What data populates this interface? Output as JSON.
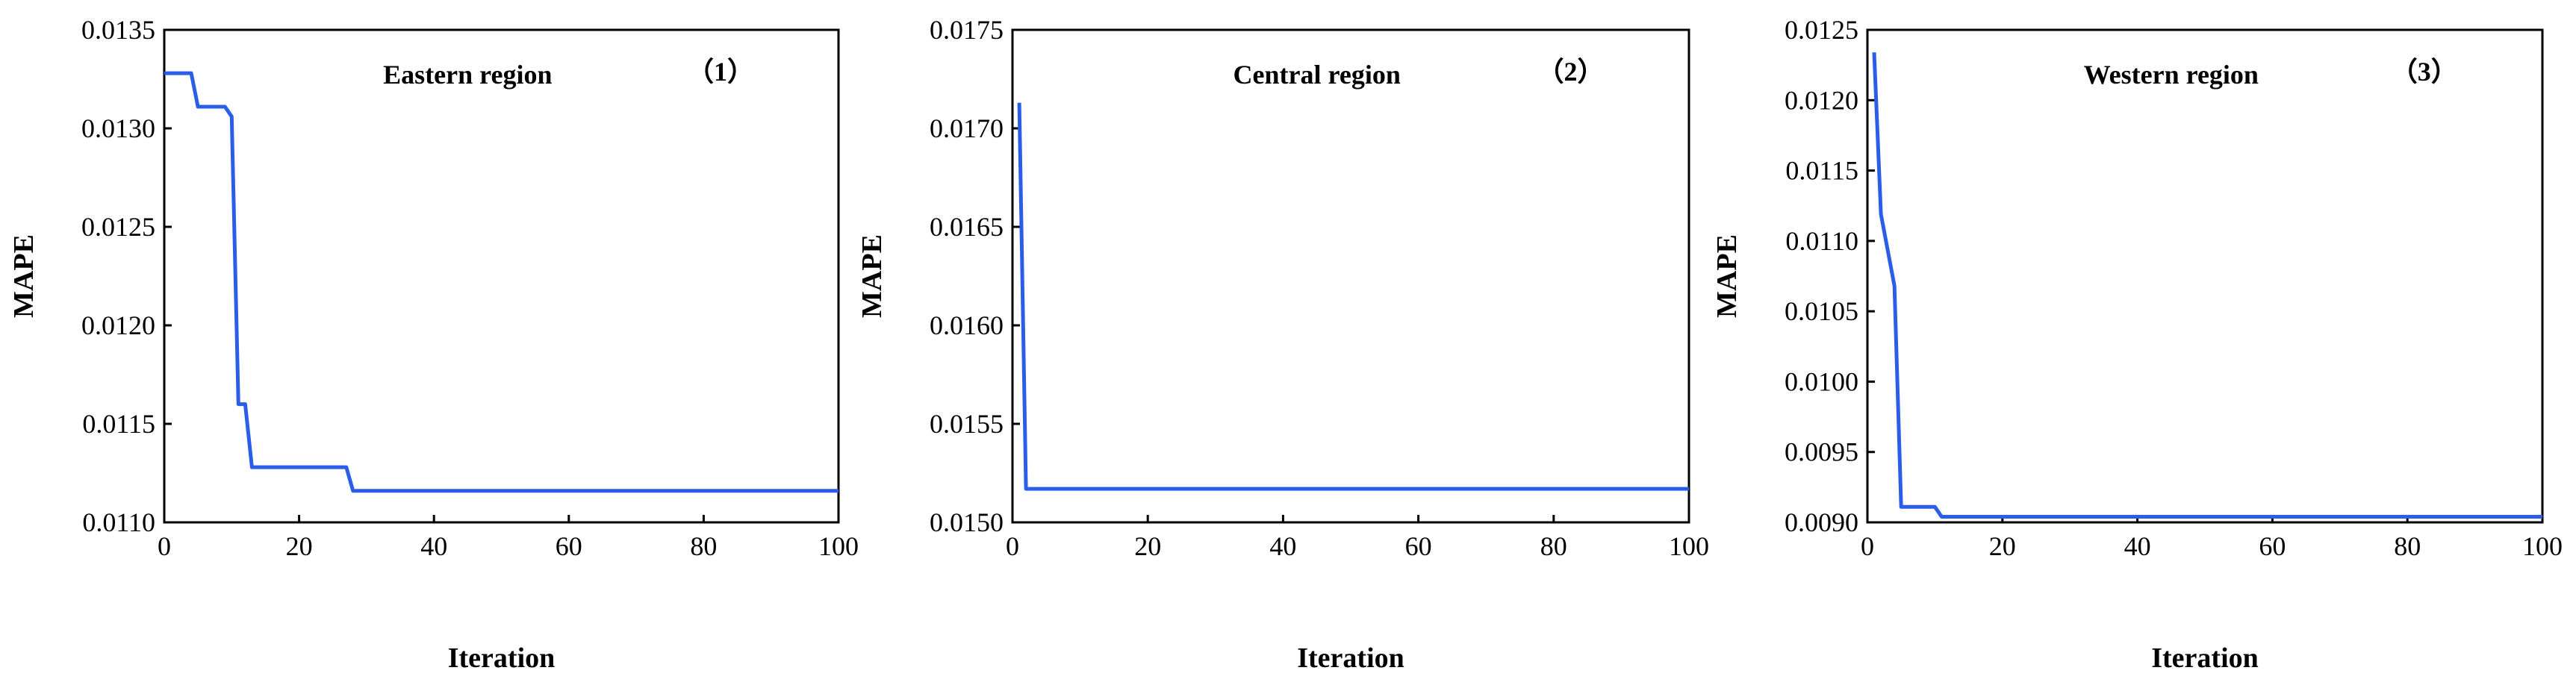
{
  "chart_data": [
    {
      "type": "line",
      "title": "Eastern region",
      "panel_label": "（1）",
      "xlabel": "Iteration",
      "ylabel": "MAPE",
      "xlim": [
        0,
        100
      ],
      "ylim": [
        0.011,
        0.0135
      ],
      "xticks": [
        0,
        20,
        40,
        60,
        80,
        100
      ],
      "xtick_labels": [
        "0",
        "20",
        "40",
        "60",
        "80",
        "100"
      ],
      "yticks": [
        0.011,
        0.0115,
        0.012,
        0.0125,
        0.013,
        0.0135
      ],
      "ytick_labels": [
        "0.0110",
        "0.0115",
        "0.0120",
        "0.0125",
        "0.0130",
        "0.0135"
      ],
      "grid": false,
      "color": "#2b5ee8",
      "series": [
        {
          "x": [
            0,
            4,
            5,
            9,
            10,
            11,
            12,
            13,
            27,
            28,
            100
          ],
          "y": [
            0.01328,
            0.01328,
            0.01311,
            0.01311,
            0.01306,
            0.0116,
            0.0116,
            0.01128,
            0.01128,
            0.01116,
            0.01116
          ]
        }
      ]
    },
    {
      "type": "line",
      "title": "Central region",
      "panel_label": "（2）",
      "xlabel": "Iteration",
      "ylabel": "MAPE",
      "xlim": [
        0,
        100
      ],
      "ylim": [
        0.015,
        0.0175
      ],
      "xticks": [
        0,
        20,
        40,
        60,
        80,
        100
      ],
      "xtick_labels": [
        "0",
        "20",
        "40",
        "60",
        "80",
        "100"
      ],
      "yticks": [
        0.015,
        0.0155,
        0.016,
        0.0165,
        0.017,
        0.0175
      ],
      "ytick_labels": [
        "0.0150",
        "0.0155",
        "0.0160",
        "0.0165",
        "0.0170",
        "0.0175"
      ],
      "grid": false,
      "color": "#2b5ee8",
      "series": [
        {
          "x": [
            1,
            2,
            100
          ],
          "y": [
            0.01713,
            0.01517,
            0.01517
          ]
        }
      ]
    },
    {
      "type": "line",
      "title": "Western region",
      "panel_label": "（3）",
      "xlabel": "Iteration",
      "ylabel": "MAPE",
      "xlim": [
        0,
        100
      ],
      "ylim": [
        0.009,
        0.0125
      ],
      "xticks": [
        0,
        20,
        40,
        60,
        80,
        100
      ],
      "xtick_labels": [
        "0",
        "20",
        "40",
        "60",
        "80",
        "100"
      ],
      "yticks": [
        0.009,
        0.0095,
        0.01,
        0.0105,
        0.011,
        0.0115,
        0.012,
        0.0125
      ],
      "ytick_labels": [
        "0.0090",
        "0.0095",
        "0.0100",
        "0.0105",
        "0.0110",
        "0.0115",
        "0.0120",
        "0.0125"
      ],
      "grid": false,
      "color": "#2b5ee8",
      "series": [
        {
          "x": [
            1,
            2,
            4,
            5,
            10,
            11,
            100
          ],
          "y": [
            0.01234,
            0.01119,
            0.01068,
            0.00911,
            0.00911,
            0.00904,
            0.00904
          ]
        }
      ]
    }
  ]
}
